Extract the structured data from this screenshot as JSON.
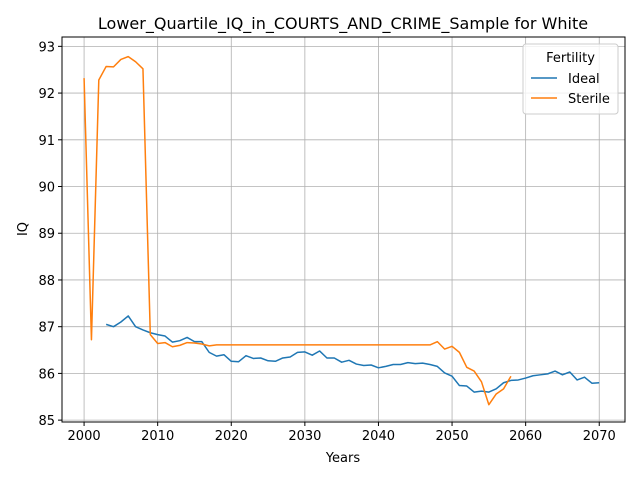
{
  "chart_data": {
    "type": "line",
    "title": "Lower_Quartile_IQ_in_COURTS_AND_CRIME_Sample for White",
    "xlabel": "Years",
    "ylabel": "IQ",
    "xlim": [
      1997,
      2073.5
    ],
    "ylim": [
      84.96,
      93.2
    ],
    "xticks": [
      2000,
      2010,
      2020,
      2030,
      2040,
      2050,
      2060,
      2070
    ],
    "yticks": [
      85,
      86,
      87,
      88,
      89,
      90,
      91,
      92,
      93
    ],
    "grid": true,
    "legend": {
      "title": "Fertility",
      "placement": "top-right"
    },
    "series": [
      {
        "name": "Ideal",
        "color": "#1f77b4",
        "x": [
          2003,
          2004,
          2005,
          2006,
          2007,
          2008,
          2009,
          2010,
          2011,
          2012,
          2013,
          2014,
          2015,
          2016,
          2017,
          2018,
          2019,
          2020,
          2021,
          2022,
          2023,
          2024,
          2025,
          2026,
          2027,
          2028,
          2029,
          2030,
          2031,
          2032,
          2033,
          2034,
          2035,
          2036,
          2037,
          2038,
          2039,
          2040,
          2041,
          2042,
          2043,
          2044,
          2045,
          2046,
          2047,
          2048,
          2049,
          2050,
          2051,
          2052,
          2053,
          2054,
          2055,
          2056,
          2057,
          2058,
          2059,
          2060,
          2061,
          2062,
          2063,
          2064,
          2065,
          2066,
          2067,
          2068,
          2069,
          2070
        ],
        "values": [
          87.05,
          87.0,
          87.1,
          87.23,
          87.0,
          86.93,
          86.87,
          86.83,
          86.8,
          86.67,
          86.7,
          86.77,
          86.68,
          86.68,
          86.45,
          86.37,
          86.4,
          86.26,
          86.25,
          86.38,
          86.32,
          86.33,
          86.27,
          86.26,
          86.33,
          86.35,
          86.45,
          86.46,
          86.39,
          86.48,
          86.33,
          86.33,
          86.24,
          86.28,
          86.2,
          86.17,
          86.18,
          86.12,
          86.15,
          86.19,
          86.19,
          86.23,
          86.21,
          86.22,
          86.19,
          86.15,
          86.01,
          85.94,
          85.74,
          85.73,
          85.6,
          85.62,
          85.6,
          85.67,
          85.8,
          85.85,
          85.86,
          85.9,
          85.95,
          85.97,
          85.99,
          86.05,
          85.97,
          86.03,
          85.86,
          85.92,
          85.79,
          85.8
        ]
      },
      {
        "name": "Sterile",
        "color": "#ff7f0e",
        "x": [
          2000,
          2001,
          2002,
          2003,
          2004,
          2005,
          2006,
          2007,
          2008,
          2009,
          2010,
          2011,
          2012,
          2013,
          2014,
          2015,
          2016,
          2017,
          2018,
          2019,
          2020,
          2021,
          2022,
          2023,
          2024,
          2025,
          2026,
          2027,
          2028,
          2029,
          2030,
          2031,
          2032,
          2033,
          2034,
          2035,
          2036,
          2037,
          2038,
          2039,
          2040,
          2041,
          2042,
          2043,
          2044,
          2045,
          2046,
          2047,
          2048,
          2049,
          2050,
          2051,
          2052,
          2053,
          2054,
          2055,
          2056,
          2057,
          2058
        ],
        "values": [
          92.32,
          86.72,
          92.28,
          92.57,
          92.56,
          92.72,
          92.78,
          92.67,
          92.52,
          86.83,
          86.64,
          86.66,
          86.57,
          86.6,
          86.66,
          86.65,
          86.63,
          86.59,
          86.61,
          86.61,
          86.61,
          86.61,
          86.61,
          86.61,
          86.61,
          86.61,
          86.61,
          86.61,
          86.61,
          86.61,
          86.61,
          86.61,
          86.61,
          86.61,
          86.61,
          86.61,
          86.61,
          86.61,
          86.61,
          86.61,
          86.61,
          86.61,
          86.61,
          86.61,
          86.61,
          86.61,
          86.61,
          86.61,
          86.68,
          86.52,
          86.58,
          86.45,
          86.13,
          86.05,
          85.82,
          85.33,
          85.56,
          85.67,
          85.94
        ]
      }
    ]
  }
}
